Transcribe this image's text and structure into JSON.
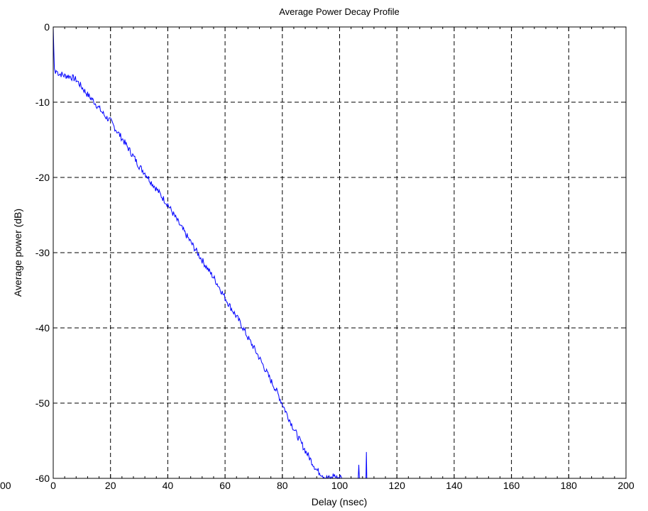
{
  "chart_data": {
    "type": "line",
    "title": "Average Power Decay Profile",
    "xlabel": "Delay (nsec)",
    "ylabel": "Average power (dB)",
    "xlim": [
      0,
      200
    ],
    "ylim": [
      -60,
      0
    ],
    "x_ticks": [
      0,
      20,
      40,
      60,
      80,
      100,
      120,
      140,
      160,
      180,
      200
    ],
    "y_ticks": [
      0,
      -10,
      -20,
      -30,
      -40,
      -50,
      -60
    ],
    "left_edge_label": "00",
    "grid": true,
    "grid_style": "dashed",
    "line_color": "#0000ff",
    "series": [
      {
        "x": [
          0,
          0.2,
          0.4,
          0.8,
          1,
          2,
          3,
          4,
          5,
          6,
          8,
          10,
          12,
          14,
          16,
          18,
          20,
          22,
          24,
          26,
          28,
          30,
          32,
          34,
          36,
          38,
          40,
          42,
          44,
          46,
          48,
          50,
          52,
          54,
          56,
          58,
          60,
          62,
          64,
          66,
          68,
          70,
          72,
          74,
          76,
          78,
          80,
          82,
          84,
          86,
          88,
          90,
          92,
          94,
          95,
          96,
          97,
          98,
          99,
          100,
          101
        ],
        "y": [
          0,
          -3,
          -5.5,
          -6.2,
          -5.8,
          -6.2,
          -6.3,
          -6.5,
          -6.5,
          -6.6,
          -7,
          -8,
          -9,
          -9.8,
          -10.8,
          -11.8,
          -12.5,
          -13.7,
          -14.8,
          -16,
          -17.2,
          -18.5,
          -19.4,
          -20.5,
          -21.5,
          -22.6,
          -23.6,
          -24.9,
          -26.2,
          -27.4,
          -28.6,
          -29.8,
          -31,
          -32.2,
          -33.3,
          -34.6,
          -36,
          -37.3,
          -38.5,
          -39.8,
          -41.3,
          -42.6,
          -44,
          -45.5,
          -47,
          -48.4,
          -50.1,
          -51.8,
          -53.4,
          -54.9,
          -56.3,
          -57.6,
          -58.9,
          -59.5,
          -59.9,
          -60,
          -60,
          -59.5,
          -60,
          -59.8,
          -60
        ]
      },
      {
        "x": [
          106.5,
          106.7,
          106.9
        ],
        "y": [
          -60,
          -58.2,
          -60
        ]
      },
      {
        "x": [
          109.2,
          109.35,
          109.5
        ],
        "y": [
          -60,
          -56.5,
          -60
        ]
      }
    ]
  }
}
